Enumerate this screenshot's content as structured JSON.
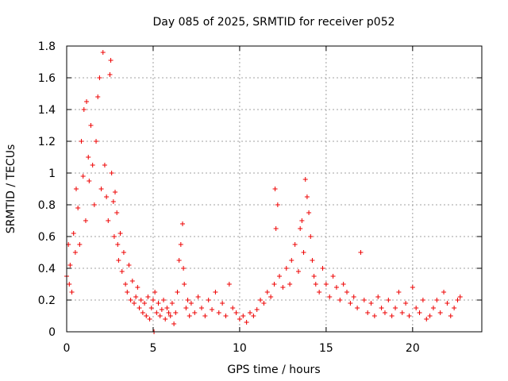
{
  "chart_data": {
    "type": "scatter",
    "title": "Day 085 of 2025, SRMTID for receiver p052",
    "xlabel": "GPS time / hours",
    "ylabel": "SRMTID / TECUs",
    "xlim": [
      0,
      24
    ],
    "ylim": [
      0,
      1.8
    ],
    "xticks": [
      0,
      5,
      10,
      15,
      20
    ],
    "xtick_labels": [
      "0",
      "5",
      "10",
      "15",
      "20"
    ],
    "yticks": [
      0,
      0.2,
      0.4,
      0.6,
      0.8,
      1.0,
      1.2,
      1.4,
      1.6,
      1.8
    ],
    "ytick_labels": [
      "0",
      "0.2",
      "0.4",
      "0.6",
      "0.8",
      "1",
      "1.2",
      "1.4",
      "1.6",
      "1.8"
    ],
    "grid": true,
    "marker": "+",
    "marker_color": "#ee0000",
    "series": [
      {
        "name": "SRMTID",
        "x": [
          0.0,
          0.1,
          0.15,
          0.2,
          0.3,
          0.4,
          0.5,
          0.55,
          0.65,
          0.75,
          0.85,
          0.95,
          1.0,
          1.1,
          1.15,
          1.25,
          1.3,
          1.4,
          1.5,
          1.6,
          1.7,
          1.8,
          1.9,
          2.0,
          2.1,
          2.2,
          2.3,
          2.4,
          2.5,
          2.55,
          2.6,
          2.7,
          2.75,
          2.8,
          2.9,
          2.95,
          3.0,
          3.1,
          3.2,
          3.3,
          3.4,
          3.5,
          3.6,
          3.7,
          3.8,
          3.9,
          4.0,
          4.1,
          4.2,
          4.3,
          4.4,
          4.5,
          4.6,
          4.7,
          4.8,
          4.9,
          5.0,
          5.05,
          5.1,
          5.2,
          5.3,
          5.4,
          5.5,
          5.6,
          5.7,
          5.8,
          5.9,
          6.0,
          6.1,
          6.2,
          6.3,
          6.4,
          6.5,
          6.6,
          6.7,
          6.75,
          6.8,
          6.9,
          7.0,
          7.1,
          7.2,
          7.4,
          7.6,
          7.8,
          8.0,
          8.2,
          8.4,
          8.6,
          8.8,
          9.0,
          9.2,
          9.4,
          9.6,
          9.8,
          10.0,
          10.2,
          10.4,
          10.6,
          10.8,
          11.0,
          11.2,
          11.4,
          11.6,
          11.8,
          12.0,
          12.05,
          12.1,
          12.2,
          12.3,
          12.5,
          12.7,
          12.9,
          13.0,
          13.2,
          13.4,
          13.5,
          13.6,
          13.7,
          13.8,
          13.9,
          14.0,
          14.1,
          14.2,
          14.3,
          14.4,
          14.6,
          14.8,
          15.0,
          15.2,
          15.4,
          15.6,
          15.8,
          16.0,
          16.2,
          16.4,
          16.6,
          16.8,
          17.0,
          17.2,
          17.4,
          17.6,
          17.8,
          18.0,
          18.2,
          18.4,
          18.6,
          18.8,
          19.0,
          19.2,
          19.4,
          19.6,
          19.8,
          20.0,
          20.2,
          20.4,
          20.6,
          20.8,
          21.0,
          21.2,
          21.4,
          21.6,
          21.8,
          22.0,
          22.2,
          22.4,
          22.6,
          22.75
        ],
        "y": [
          0.35,
          0.55,
          0.3,
          0.42,
          0.25,
          0.62,
          0.5,
          0.9,
          0.78,
          0.55,
          1.2,
          0.98,
          1.4,
          0.7,
          1.45,
          1.1,
          0.95,
          1.3,
          1.05,
          0.8,
          1.2,
          1.48,
          1.6,
          0.9,
          1.76,
          1.05,
          0.85,
          0.7,
          1.62,
          1.71,
          1.0,
          0.82,
          0.6,
          0.88,
          0.75,
          0.55,
          0.45,
          0.62,
          0.38,
          0.5,
          0.3,
          0.25,
          0.42,
          0.2,
          0.32,
          0.18,
          0.22,
          0.28,
          0.15,
          0.2,
          0.12,
          0.18,
          0.1,
          0.22,
          0.08,
          0.15,
          0.2,
          0.0,
          0.25,
          0.12,
          0.18,
          0.1,
          0.14,
          0.2,
          0.08,
          0.15,
          0.12,
          0.1,
          0.18,
          0.05,
          0.12,
          0.25,
          0.45,
          0.55,
          0.68,
          0.4,
          0.3,
          0.15,
          0.2,
          0.1,
          0.18,
          0.12,
          0.22,
          0.15,
          0.1,
          0.2,
          0.14,
          0.25,
          0.12,
          0.18,
          0.1,
          0.3,
          0.15,
          0.12,
          0.08,
          0.1,
          0.06,
          0.12,
          0.1,
          0.14,
          0.2,
          0.18,
          0.25,
          0.22,
          0.3,
          0.9,
          0.65,
          0.8,
          0.35,
          0.28,
          0.4,
          0.3,
          0.45,
          0.55,
          0.38,
          0.65,
          0.7,
          0.5,
          0.96,
          0.85,
          0.75,
          0.6,
          0.45,
          0.35,
          0.3,
          0.25,
          0.4,
          0.3,
          0.22,
          0.35,
          0.28,
          0.2,
          0.3,
          0.25,
          0.18,
          0.22,
          0.15,
          0.5,
          0.2,
          0.12,
          0.18,
          0.1,
          0.22,
          0.15,
          0.12,
          0.2,
          0.1,
          0.15,
          0.25,
          0.12,
          0.18,
          0.1,
          0.28,
          0.15,
          0.12,
          0.2,
          0.08,
          0.1,
          0.15,
          0.2,
          0.12,
          0.25,
          0.18,
          0.1,
          0.15,
          0.2,
          0.22
        ]
      }
    ]
  }
}
